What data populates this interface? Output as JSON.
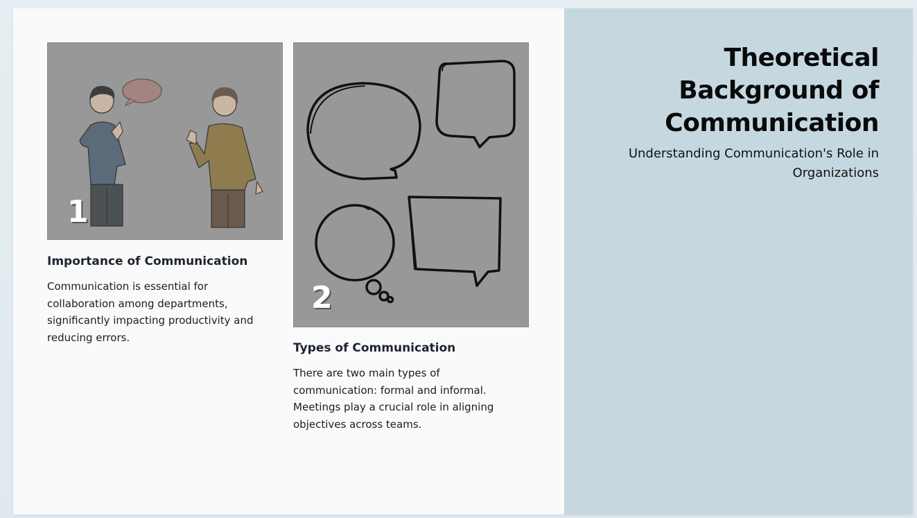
{
  "header": {
    "title": "Theoretical Background of Communication",
    "subtitle": "Understanding Communication's Role in Organizations"
  },
  "cards": [
    {
      "number": "1",
      "title": "Importance of Communication",
      "text": "Communication is essential for collaboration among departments, significantly impacting productivity and reducing errors.",
      "image_icon": "two-people-talking-illustration"
    },
    {
      "number": "2",
      "title": "Types of Communication",
      "text": "There are two main types of communication: formal and informal. Meetings play a crucial role in aligning objectives across teams.",
      "image_icon": "speech-bubbles-illustration"
    }
  ],
  "colors": {
    "side_panel": "#c6d8df",
    "slide_bg": "#fafafa",
    "image_bg": "#989898"
  }
}
